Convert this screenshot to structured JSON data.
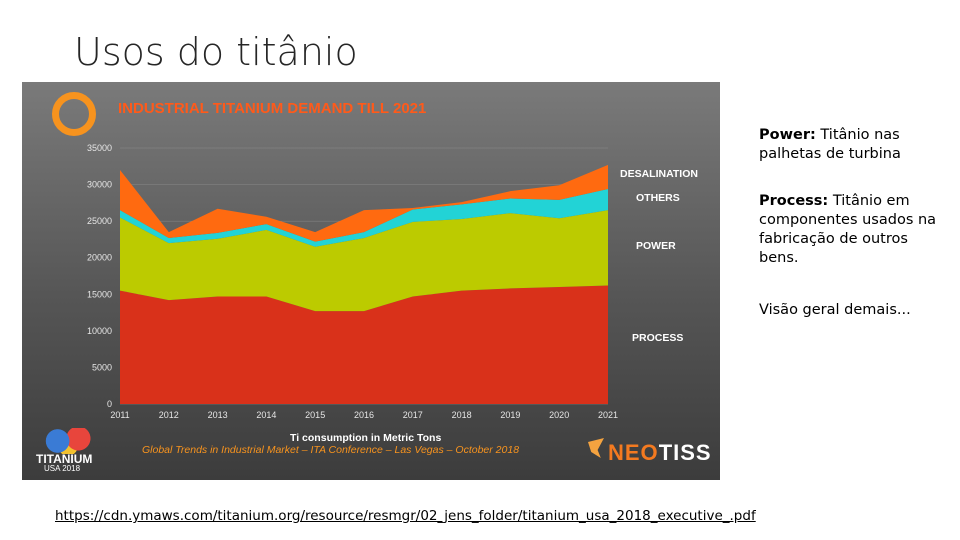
{
  "slide": {
    "title": "Usos do titânio",
    "chart_title": "INDUSTRIAL TITANIUM DEMAND TILL 2021",
    "x_axis_label": "Ti consumption  in Metric Tons",
    "footer_note": "Global Trends in Industrial Market – ITA Conference – Las Vegas – October 2018",
    "logo_left_line1": "TITANIUM",
    "logo_left_line2": "USA 2018",
    "logo_right_prefix": "NEO",
    "logo_right_suffix": "TISS",
    "notes": [
      {
        "bold": "Power:",
        "text": " Titânio nas palhetas de turbina"
      },
      {
        "bold": "Process:",
        "text": " Titânio em componentes usados na fabricação de outros bens."
      },
      {
        "bold": "",
        "text": "Visão geral demais..."
      }
    ],
    "link": "https://cdn.ymaws.com/titanium.org/resource/resmgr/02_jens_folder/titanium_usa_2018_executive_.pdf"
  },
  "colors": {
    "process": "#d9311a",
    "power": "#bccb00",
    "others": "#22d3d6",
    "desalination": "#ff6a10",
    "title_orange": "#ff5a1a"
  },
  "chart_data": {
    "type": "area",
    "stacked": true,
    "title": "INDUSTRIAL TITANIUM DEMAND TILL 2021",
    "xlabel": "Ti consumption  in Metric Tons",
    "ylabel": "",
    "ylim": [
      0,
      35000
    ],
    "yticks": [
      "0",
      "5000",
      "10000",
      "15000",
      "20000",
      "25000",
      "30000",
      "35000"
    ],
    "categories": [
      "2011",
      "2012",
      "2013",
      "2014",
      "2015",
      "2016",
      "2017",
      "2018",
      "2019",
      "2020",
      "2021"
    ],
    "series": [
      {
        "name": "PROCESS",
        "values": [
          15500,
          14200,
          14700,
          14700,
          12700,
          12700,
          14700,
          15500,
          15800,
          16000,
          16200
        ]
      },
      {
        "name": "POWER",
        "values": [
          10000,
          7800,
          7900,
          9100,
          8800,
          10000,
          10200,
          9800,
          10300,
          9400,
          10300
        ]
      },
      {
        "name": "OTHERS",
        "values": [
          1000,
          700,
          800,
          800,
          700,
          800,
          1700,
          2000,
          2000,
          2500,
          2900
        ]
      },
      {
        "name": "DESALINATION",
        "values": [
          5500,
          800,
          3300,
          1000,
          1300,
          3000,
          200,
          300,
          1000,
          2000,
          3300
        ]
      }
    ],
    "legend": "right"
  }
}
